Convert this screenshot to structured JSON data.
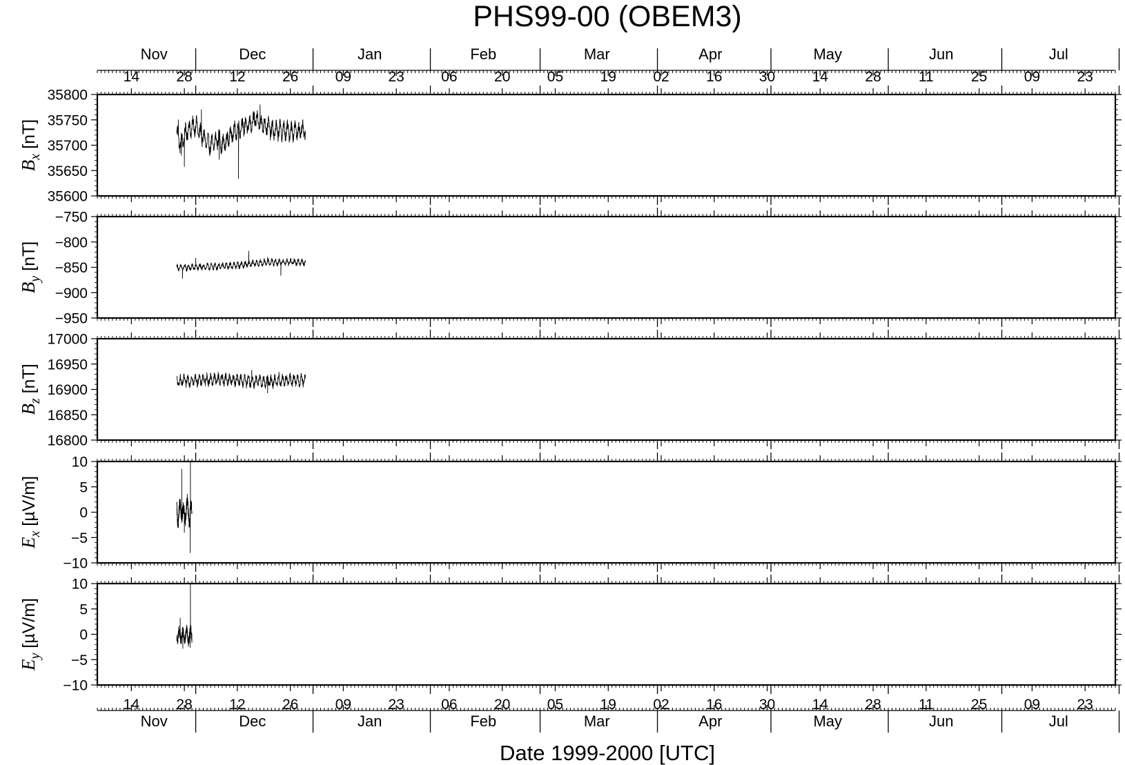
{
  "chart_data": {
    "type": "line",
    "title": "PHS99-00 (OBEM3)",
    "xlabel": "Date 1999-2000 [UTC]",
    "xlim": [
      "1999-11-05",
      "2000-07-31"
    ],
    "day_ticks": [
      {
        "date": "1999-11-14",
        "label": "14"
      },
      {
        "date": "1999-11-28",
        "label": "28"
      },
      {
        "date": "1999-12-12",
        "label": "12"
      },
      {
        "date": "1999-12-26",
        "label": "26"
      },
      {
        "date": "2000-01-09",
        "label": "09"
      },
      {
        "date": "2000-01-23",
        "label": "23"
      },
      {
        "date": "2000-02-06",
        "label": "06"
      },
      {
        "date": "2000-02-20",
        "label": "20"
      },
      {
        "date": "2000-03-05",
        "label": "05"
      },
      {
        "date": "2000-03-19",
        "label": "19"
      },
      {
        "date": "2000-04-02",
        "label": "02"
      },
      {
        "date": "2000-04-16",
        "label": "16"
      },
      {
        "date": "2000-04-30",
        "label": "30"
      },
      {
        "date": "2000-05-14",
        "label": "14"
      },
      {
        "date": "2000-05-28",
        "label": "28"
      },
      {
        "date": "2000-06-11",
        "label": "11"
      },
      {
        "date": "2000-06-25",
        "label": "25"
      },
      {
        "date": "2000-07-09",
        "label": "09"
      },
      {
        "date": "2000-07-23",
        "label": "23"
      }
    ],
    "month_ticks": [
      {
        "date": "1999-12-01"
      },
      {
        "date": "2000-01-01"
      },
      {
        "date": "2000-02-01"
      },
      {
        "date": "2000-03-01"
      },
      {
        "date": "2000-04-01"
      },
      {
        "date": "2000-05-01"
      },
      {
        "date": "2000-06-01"
      },
      {
        "date": "2000-07-01"
      },
      {
        "date": "2000-08-01"
      }
    ],
    "month_labels": [
      {
        "date": "1999-11-20",
        "label": "Nov"
      },
      {
        "date": "1999-12-16",
        "label": "Dec"
      },
      {
        "date": "2000-01-16",
        "label": "Jan"
      },
      {
        "date": "2000-02-15",
        "label": "Feb"
      },
      {
        "date": "2000-03-16",
        "label": "Mar"
      },
      {
        "date": "2000-04-15",
        "label": "Apr"
      },
      {
        "date": "2000-05-16",
        "label": "May"
      },
      {
        "date": "2000-06-15",
        "label": "Jun"
      },
      {
        "date": "2000-07-16",
        "label": "Jul"
      }
    ],
    "panels": [
      {
        "name": "Bx",
        "ylabel_main": "B",
        "ylabel_sub": "x",
        "ylabel_unit": "[nT]",
        "ylim": [
          35600,
          35800
        ],
        "yticks": [
          35600,
          35650,
          35700,
          35750,
          35800
        ],
        "data": {
          "start": "1999-11-26",
          "end": "1999-12-30",
          "anchors": [
            [
              0,
              35725
            ],
            [
              1,
              35700
            ],
            [
              2,
              35720
            ],
            [
              3,
              35730
            ],
            [
              4,
              35735
            ],
            [
              5,
              35740
            ],
            [
              6,
              35725
            ],
            [
              7,
              35715
            ],
            [
              8,
              35705
            ],
            [
              9,
              35700
            ],
            [
              10,
              35705
            ],
            [
              11,
              35715
            ],
            [
              12,
              35700
            ],
            [
              13,
              35705
            ],
            [
              14,
              35720
            ],
            [
              15,
              35725
            ],
            [
              16,
              35730
            ],
            [
              17,
              35735
            ],
            [
              18,
              35740
            ],
            [
              19,
              35738
            ],
            [
              20,
              35745
            ],
            [
              21,
              35750
            ],
            [
              22,
              35745
            ],
            [
              23,
              35740
            ],
            [
              24,
              35738
            ],
            [
              25,
              35730
            ],
            [
              26,
              35728
            ],
            [
              27,
              35730
            ],
            [
              28,
              35728
            ]
          ],
          "amp": 20,
          "spikes": [
            [
              0.4,
              35750
            ],
            [
              1.2,
              35680
            ],
            [
              2.0,
              35658
            ],
            [
              6.5,
              35770
            ],
            [
              11.2,
              35672
            ],
            [
              16.3,
              35634
            ],
            [
              20.5,
              35765
            ],
            [
              22.0,
              35780
            ],
            [
              27.0,
              35718
            ]
          ]
        }
      },
      {
        "name": "By",
        "ylabel_main": "B",
        "ylabel_sub": "y",
        "ylabel_unit": "[nT]",
        "ylim": [
          -950,
          -750
        ],
        "yticks": [
          -950,
          -900,
          -850,
          -800,
          -750
        ],
        "data": {
          "start": "1999-11-26",
          "end": "1999-12-30",
          "anchors": [
            [
              0,
              -851
            ],
            [
              4,
              -850
            ],
            [
              8,
              -849
            ],
            [
              12,
              -848
            ],
            [
              16,
              -846
            ],
            [
              20,
              -843
            ],
            [
              24,
              -840
            ],
            [
              28,
              -840
            ]
          ],
          "amp": 7,
          "spikes": [
            [
              1.5,
              -872
            ],
            [
              5.0,
              -832
            ],
            [
              19.0,
              -818
            ],
            [
              24.0,
              -830
            ],
            [
              27.5,
              -866
            ]
          ]
        }
      },
      {
        "name": "Bz",
        "ylabel_main": "B",
        "ylabel_sub": "z",
        "ylabel_unit": "[nT]",
        "ylim": [
          16800,
          17000
        ],
        "yticks": [
          16800,
          16850,
          16900,
          16950,
          17000
        ],
        "data": {
          "start": "1999-11-26",
          "end": "1999-12-30",
          "anchors": [
            [
              0,
              16915
            ],
            [
              4,
              16918
            ],
            [
              8,
              16919
            ],
            [
              12,
              16920
            ],
            [
              16,
              16918
            ],
            [
              20,
              16916
            ],
            [
              24,
              16915
            ],
            [
              28,
              16918
            ]
          ],
          "amp": 13,
          "spikes": [
            [
              19.8,
              16938
            ],
            [
              24.0,
              16893
            ],
            [
              27.0,
              16934
            ]
          ]
        }
      },
      {
        "name": "Ex",
        "ylabel_main": "E",
        "ylabel_sub": "x",
        "ylabel_unit": "[µV/m]",
        "ylim": [
          -10,
          10
        ],
        "yticks": [
          -10,
          -5,
          0,
          5,
          10
        ],
        "data": {
          "start": "1999-11-26",
          "end": "1999-11-30",
          "anchors": [
            [
              0,
              1
            ],
            [
              0.3,
              -1
            ],
            [
              0.8,
              0
            ],
            [
              1.2,
              1
            ],
            [
              1.8,
              -1
            ],
            [
              2.4,
              0.5
            ],
            [
              2.8,
              1
            ],
            [
              3.3,
              -1
            ],
            [
              3.5,
              0
            ]
          ],
          "amp": 2.5,
          "spikes": [
            [
              1.3,
              8.5
            ],
            [
              2.0,
              -4
            ],
            [
              3.55,
              -8
            ],
            [
              3.6,
              10
            ]
          ]
        }
      },
      {
        "name": "Ey",
        "ylabel_main": "E",
        "ylabel_sub": "y",
        "ylabel_unit": "[µV/m]",
        "ylim": [
          -10,
          10
        ],
        "yticks": [
          -10,
          -5,
          0,
          5,
          10
        ],
        "data": {
          "start": "1999-11-26",
          "end": "1999-11-30",
          "anchors": [
            [
              0,
              0
            ],
            [
              0.5,
              -0.5
            ],
            [
              1,
              0
            ],
            [
              1.5,
              -0.5
            ],
            [
              2,
              0
            ],
            [
              2.5,
              0
            ],
            [
              3,
              -0.5
            ],
            [
              3.5,
              0
            ]
          ],
          "amp": 1.8,
          "spikes": [
            [
              0.9,
              3.2
            ],
            [
              1.6,
              -2.8
            ],
            [
              3.55,
              -2.6
            ],
            [
              3.6,
              10
            ]
          ]
        }
      }
    ]
  }
}
